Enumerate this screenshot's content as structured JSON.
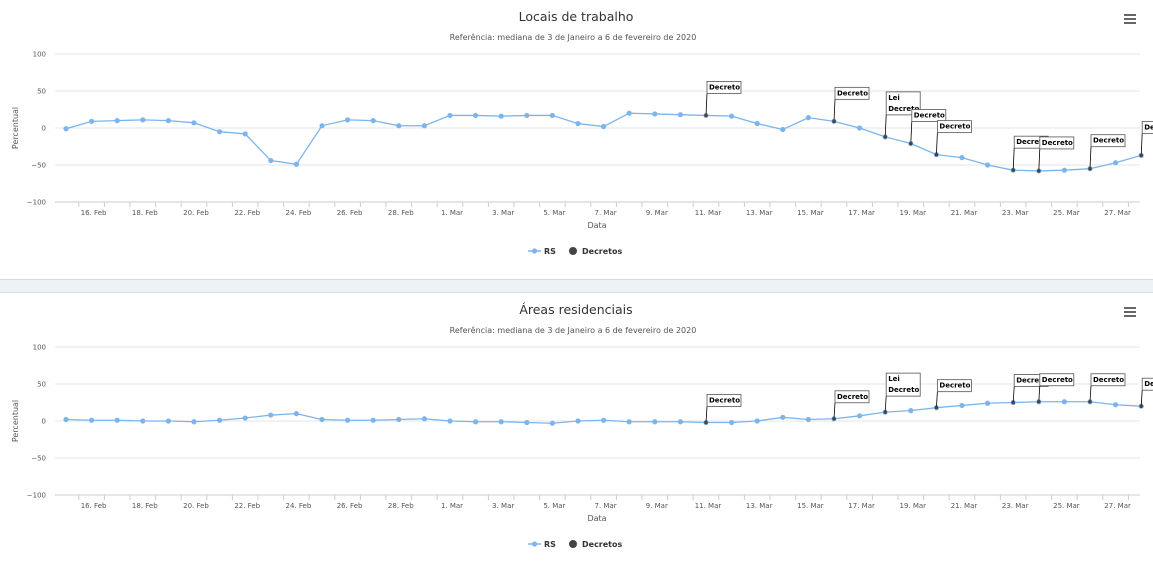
{
  "colors": {
    "series": "#7cb5ec",
    "decree": "#434348",
    "grid": "#e6e6e6",
    "separator": "#eef2f5"
  },
  "icons": {
    "menu": "hamburger-menu-icon"
  },
  "chart_data": [
    {
      "type": "line",
      "title": "Locais de trabalho",
      "subtitle": "Referência: mediana de 3 de Janeiro a 6 de fevereiro de 2020",
      "xlabel": "Data",
      "ylabel": "Percentual",
      "ylim": [
        -100,
        100
      ],
      "yticks": [
        100,
        50,
        0,
        -50,
        -100
      ],
      "grid": true,
      "legend_position": "bottom-center",
      "x": [
        "15. Feb",
        "16. Feb",
        "17. Feb",
        "18. Feb",
        "19. Feb",
        "20. Feb",
        "21. Feb",
        "22. Feb",
        "23. Feb",
        "24. Feb",
        "25. Feb",
        "26. Feb",
        "27. Feb",
        "28. Feb",
        "29. Feb",
        "1. Mar",
        "2. Mar",
        "3. Mar",
        "4. Mar",
        "5. Mar",
        "6. Mar",
        "7. Mar",
        "8. Mar",
        "9. Mar",
        "10. Mar",
        "11. Mar",
        "12. Mar",
        "13. Mar",
        "14. Mar",
        "15. Mar",
        "16. Mar",
        "17. Mar",
        "18. Mar",
        "19. Mar",
        "20. Mar",
        "21. Mar",
        "22. Mar",
        "23. Mar",
        "24. Mar",
        "25. Mar",
        "26. Mar",
        "27. Mar",
        "28. Mar"
      ],
      "x_tick_labels": [
        "16. Feb",
        "18. Feb",
        "20. Feb",
        "22. Feb",
        "24. Feb",
        "26. Feb",
        "28. Feb",
        "1. Mar",
        "3. Mar",
        "5. Mar",
        "7. Mar",
        "9. Mar",
        "11. Mar",
        "13. Mar",
        "15. Mar",
        "17. Mar",
        "19. Mar",
        "21. Mar",
        "23. Mar",
        "25. Mar",
        "27. Mar"
      ],
      "series": [
        {
          "name": "RS",
          "values": [
            -1,
            9,
            10,
            11,
            10,
            7,
            -5,
            -8,
            -44,
            -49,
            3,
            11,
            10,
            3,
            3,
            17,
            17,
            16,
            17,
            17,
            6,
            2,
            20,
            19,
            18,
            17,
            16,
            6,
            -2,
            14,
            9,
            0,
            -12,
            -21,
            -36,
            -40,
            -50,
            -57,
            -58,
            -57,
            -55,
            -47,
            -37
          ]
        }
      ],
      "decretos": {
        "name": "Decretos",
        "flags": [
          {
            "x": "11. Mar",
            "labels": [
              "Decreto"
            ]
          },
          {
            "x": "16. Mar",
            "labels": [
              "Decreto"
            ]
          },
          {
            "x": "18. Mar",
            "labels": [
              "Lei",
              "Decreto"
            ]
          },
          {
            "x": "19. Mar",
            "labels": [
              "Decreto"
            ]
          },
          {
            "x": "20. Mar",
            "labels": [
              "Decreto"
            ]
          },
          {
            "x": "23. Mar",
            "labels": [
              "Decreto"
            ]
          },
          {
            "x": "24. Mar",
            "labels": [
              "Decreto"
            ]
          },
          {
            "x": "26. Mar",
            "labels": [
              "Decreto"
            ]
          },
          {
            "x": "28. Mar",
            "labels": [
              "Decreto"
            ]
          }
        ]
      }
    },
    {
      "type": "line",
      "title": "Áreas residenciais",
      "subtitle": "Referência: mediana de 3 de Janeiro a 6 de fevereiro de 2020",
      "xlabel": "Data",
      "ylabel": "Percentual",
      "ylim": [
        -100,
        100
      ],
      "yticks": [
        100,
        50,
        0,
        -50,
        -100
      ],
      "grid": true,
      "legend_position": "bottom-center",
      "x": [
        "15. Feb",
        "16. Feb",
        "17. Feb",
        "18. Feb",
        "19. Feb",
        "20. Feb",
        "21. Feb",
        "22. Feb",
        "23. Feb",
        "24. Feb",
        "25. Feb",
        "26. Feb",
        "27. Feb",
        "28. Feb",
        "29. Feb",
        "1. Mar",
        "2. Mar",
        "3. Mar",
        "4. Mar",
        "5. Mar",
        "6. Mar",
        "7. Mar",
        "8. Mar",
        "9. Mar",
        "10. Mar",
        "11. Mar",
        "12. Mar",
        "13. Mar",
        "14. Mar",
        "15. Mar",
        "16. Mar",
        "17. Mar",
        "18. Mar",
        "19. Mar",
        "20. Mar",
        "21. Mar",
        "22. Mar",
        "23. Mar",
        "24. Mar",
        "25. Mar",
        "26. Mar",
        "27. Mar",
        "28. Mar"
      ],
      "x_tick_labels": [
        "16. Feb",
        "18. Feb",
        "20. Feb",
        "22. Feb",
        "24. Feb",
        "26. Feb",
        "28. Feb",
        "1. Mar",
        "3. Mar",
        "5. Mar",
        "7. Mar",
        "9. Mar",
        "11. Mar",
        "13. Mar",
        "15. Mar",
        "17. Mar",
        "19. Mar",
        "21. Mar",
        "23. Mar",
        "25. Mar",
        "27. Mar"
      ],
      "series": [
        {
          "name": "RS",
          "values": [
            2,
            1,
            1,
            0,
            0,
            -1,
            1,
            4,
            8,
            10,
            2,
            1,
            1,
            2,
            3,
            0,
            -1,
            -1,
            -2,
            -3,
            0,
            1,
            -1,
            -1,
            -1,
            -2,
            -2,
            0,
            5,
            2,
            3,
            7,
            12,
            14,
            18,
            21,
            24,
            25,
            26,
            26,
            26,
            22,
            20
          ]
        }
      ],
      "decretos": {
        "name": "Decretos",
        "flags": [
          {
            "x": "11. Mar",
            "labels": [
              "Decreto"
            ]
          },
          {
            "x": "16. Mar",
            "labels": [
              "Decreto"
            ]
          },
          {
            "x": "18. Mar",
            "labels": [
              "Lei",
              "Decreto"
            ]
          },
          {
            "x": "20. Mar",
            "labels": [
              "Decreto"
            ]
          },
          {
            "x": "23. Mar",
            "labels": [
              "Decreto"
            ]
          },
          {
            "x": "24. Mar",
            "labels": [
              "Decreto"
            ]
          },
          {
            "x": "26. Mar",
            "labels": [
              "Decreto"
            ]
          },
          {
            "x": "28. Mar",
            "labels": [
              "Decreto"
            ]
          }
        ]
      }
    }
  ]
}
